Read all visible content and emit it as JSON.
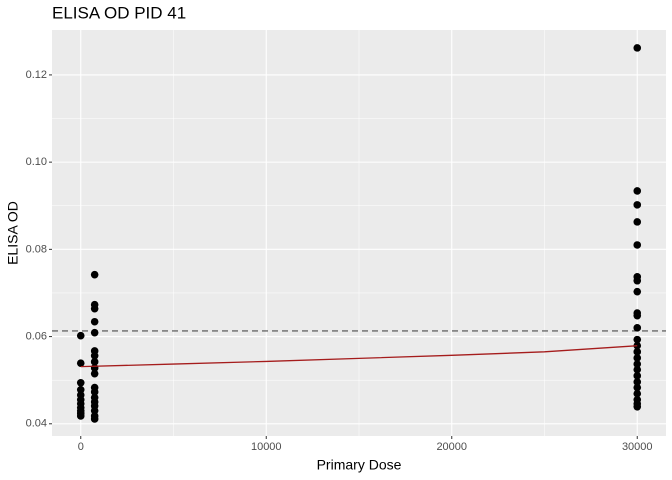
{
  "chart_data": {
    "type": "scatter",
    "title": "ELISA OD PID 41",
    "x_label": "Primary Dose",
    "y_label": "ELISA OD",
    "xlim": [
      -1550,
      31550
    ],
    "ylim": [
      0.0372,
      0.1303
    ],
    "xticks": [
      0,
      10000,
      20000,
      30000
    ],
    "x_minor_ticks": [
      5000,
      15000,
      25000
    ],
    "yticks": [
      0.04,
      0.06,
      0.08,
      {
        "value": 0.1,
        "label": "0.10"
      },
      0.12
    ],
    "y_minor_ticks": [
      0.05,
      0.07,
      0.09,
      0.11
    ],
    "grid": true,
    "series": [
      {
        "color": "#000000",
        "x": [
          0,
          0,
          0,
          0,
          0,
          0,
          0,
          0,
          0,
          0,
          0,
          750,
          750,
          750,
          750,
          750,
          750,
          750,
          750,
          750,
          750,
          750,
          750,
          750,
          750,
          750,
          750,
          750,
          750,
          30000,
          30000,
          30000,
          30000,
          30000,
          30000,
          30000,
          30000,
          30000,
          30000,
          30000,
          30000,
          30000,
          30000,
          30000,
          30000,
          30000,
          30000,
          30000,
          30000,
          30000,
          30000,
          30000,
          30000
        ],
        "y": [
          0.0602,
          0.0539,
          0.0494,
          0.0478,
          0.0466,
          0.0455,
          0.0446,
          0.0437,
          0.043,
          0.0424,
          0.0418,
          0.0742,
          0.0673,
          0.0664,
          0.0634,
          0.0609,
          0.0567,
          0.0556,
          0.0542,
          0.0528,
          0.0515,
          0.0483,
          0.0473,
          0.046,
          0.045,
          0.0441,
          0.043,
          0.0418,
          0.0411,
          0.1262,
          0.0934,
          0.0902,
          0.0863,
          0.081,
          0.0737,
          0.0728,
          0.0703,
          0.0654,
          0.0648,
          0.062,
          0.0593,
          0.0579,
          0.0565,
          0.0551,
          0.0537,
          0.0524,
          0.051,
          0.0496,
          0.0483,
          0.0469,
          0.0455,
          0.0446,
          0.0439
        ]
      }
    ],
    "fit": {
      "color": "#a51c1c",
      "x": [
        0,
        5000,
        10000,
        15000,
        20000,
        25000,
        30000
      ],
      "y": [
        0.0531,
        0.0537,
        0.0543,
        0.055,
        0.0557,
        0.0565,
        0.0579
      ]
    },
    "hline": {
      "y": 0.0613,
      "color": "#4d4d4d"
    }
  }
}
